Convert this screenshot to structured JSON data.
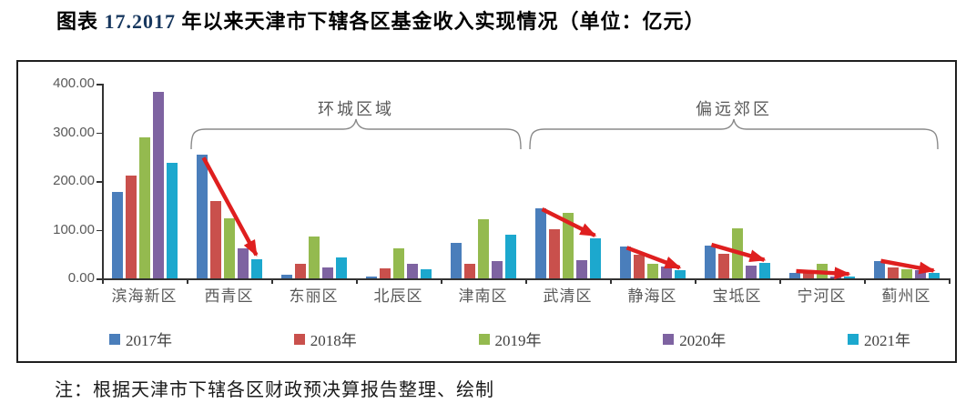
{
  "title": {
    "part1": "图表 ",
    "part2": "17.2017",
    "part3": " 年以来天津市下辖各区基金收入实现情况（单位：亿元）"
  },
  "note": "注：根据天津市下辖各区财政预决算报告整理、绘制",
  "chart_data": {
    "type": "bar",
    "title": "2017年以来天津市下辖各区基金收入实现情况",
    "unit": "亿元",
    "categories": [
      "滨海新区",
      "西青区",
      "东丽区",
      "北辰区",
      "津南区",
      "武清区",
      "静海区",
      "宝坻区",
      "宁河区",
      "蓟州区"
    ],
    "series": [
      {
        "name": "2017年",
        "color": "#4A7EBB",
        "values": [
          177,
          255,
          7,
          4,
          72,
          144,
          65,
          68,
          12,
          35
        ]
      },
      {
        "name": "2018年",
        "color": "#C9504C",
        "values": [
          212,
          159,
          29,
          20,
          30,
          101,
          48,
          51,
          11,
          22
        ]
      },
      {
        "name": "2019年",
        "color": "#94BA4F",
        "values": [
          289,
          124,
          86,
          62,
          121,
          135,
          30,
          102,
          30,
          19
        ]
      },
      {
        "name": "2020年",
        "color": "#7E63A1",
        "values": [
          384,
          61,
          22,
          29,
          36,
          37,
          24,
          27,
          3,
          16
        ]
      },
      {
        "name": "2021年",
        "color": "#1CA8CE",
        "values": [
          237,
          40,
          43,
          18,
          90,
          82,
          16,
          32,
          3,
          11
        ]
      }
    ],
    "ylim": [
      0,
      400
    ],
    "y_ticks": [
      {
        "label": "0.00",
        "value": 0
      },
      {
        "label": "100.00",
        "value": 100
      },
      {
        "label": "200.00",
        "value": 200
      },
      {
        "label": "300.00",
        "value": 300
      },
      {
        "label": "400.00",
        "value": 400
      }
    ],
    "grid": false,
    "legend_position": "bottom",
    "group_annotations": [
      {
        "label": "环城区域",
        "from_category": "西青区",
        "to_category": "津南区",
        "from_index": 1,
        "to_index": 4
      },
      {
        "label": "偏远郊区",
        "from_category": "武清区",
        "to_category": "蓟州区",
        "from_index": 5,
        "to_index": 9
      }
    ],
    "decline_arrows": [
      {
        "category": "西青区",
        "category_index": 1,
        "from_series": 0,
        "from_value": 248,
        "to_series": 4,
        "to_value": 48
      },
      {
        "category": "武清区",
        "category_index": 5,
        "from_series": 0,
        "from_value": 142,
        "to_series": 4,
        "to_value": 88
      },
      {
        "category": "静海区",
        "category_index": 6,
        "from_series": 0,
        "from_value": 63,
        "to_series": 4,
        "to_value": 22
      },
      {
        "category": "宝坻区",
        "category_index": 7,
        "from_series": 0,
        "from_value": 69,
        "to_series": 4,
        "to_value": 38
      },
      {
        "category": "宁河区",
        "category_index": 8,
        "from_series": 0,
        "from_value": 15,
        "to_series": 4,
        "to_value": 9
      },
      {
        "category": "蓟州区",
        "category_index": 9,
        "from_series": 0,
        "from_value": 36,
        "to_series": 4,
        "to_value": 16
      }
    ],
    "arrow_color": "#DF1F1F"
  },
  "colors": {
    "title_number": "#17375E",
    "axis_label": "#595959",
    "annotation_text": "#595959",
    "brace": "#8a8a8a",
    "axis_line": "#333333",
    "border": "#1f1f1f"
  }
}
